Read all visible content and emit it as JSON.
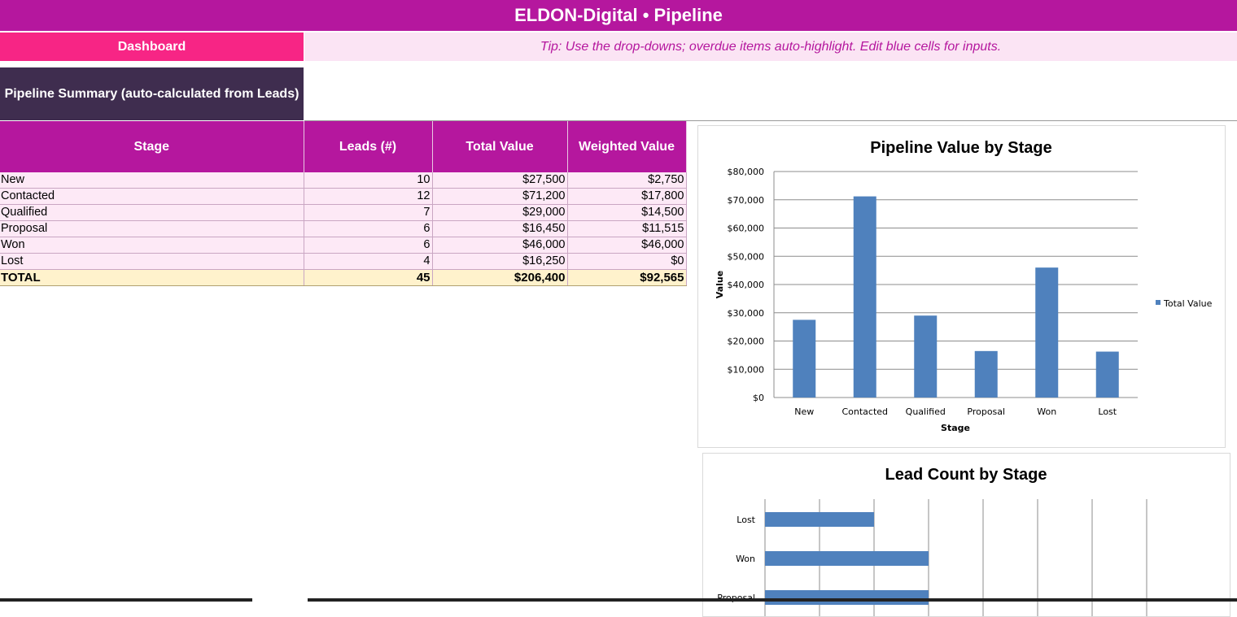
{
  "header": {
    "title": "ELDON-Digital • Pipeline"
  },
  "nav": {
    "dashboard_label": "Dashboard",
    "tip": "Tip: Use the drop-downs; overdue items auto-highlight. Edit blue cells for inputs."
  },
  "section": {
    "title": "Pipeline Summary (auto-calculated from Leads)"
  },
  "table": {
    "columns": [
      "Stage",
      "Leads (#)",
      "Total Value",
      "Weighted Value"
    ],
    "rows": [
      [
        "New",
        "10",
        "$27,500",
        "$2,750"
      ],
      [
        "Contacted",
        "12",
        "$71,200",
        "$17,800"
      ],
      [
        "Qualified",
        "7",
        "$29,000",
        "$14,500"
      ],
      [
        "Proposal",
        "6",
        "$16,450",
        "$11,515"
      ],
      [
        "Won",
        "6",
        "$46,000",
        "$46,000"
      ],
      [
        "Lost",
        "4",
        "$16,250",
        "$0"
      ]
    ],
    "total": [
      "TOTAL",
      "45",
      "$206,400",
      "$92,565"
    ]
  },
  "colors": {
    "brand": "#b5179e",
    "accent": "#f72585",
    "tip_bg": "#fbe4f4",
    "section_bg": "#3f2d4f",
    "row_bg": "#fde9f6",
    "total_bg": "#fff2cc",
    "bar": "#4f81bd"
  },
  "chart_data": [
    {
      "type": "bar",
      "title": "Pipeline Value by Stage",
      "xlabel": "Stage",
      "ylabel": "Value",
      "categories": [
        "New",
        "Contacted",
        "Qualified",
        "Proposal",
        "Won",
        "Lost"
      ],
      "series": [
        {
          "name": "Total Value",
          "values": [
            27500,
            71200,
            29000,
            16450,
            46000,
            16250
          ]
        }
      ],
      "ylim": [
        0,
        80000
      ],
      "yticks": [
        "$0",
        "$10,000",
        "$20,000",
        "$30,000",
        "$40,000",
        "$50,000",
        "$60,000",
        "$70,000",
        "$80,000"
      ],
      "grid": true,
      "legend": "right"
    },
    {
      "type": "bar",
      "orientation": "horizontal",
      "title": "Lead Count by Stage",
      "categories": [
        "Lost",
        "Won",
        "Proposal"
      ],
      "values": [
        4,
        6,
        6
      ],
      "xlim": [
        0,
        14
      ],
      "grid": true
    }
  ]
}
